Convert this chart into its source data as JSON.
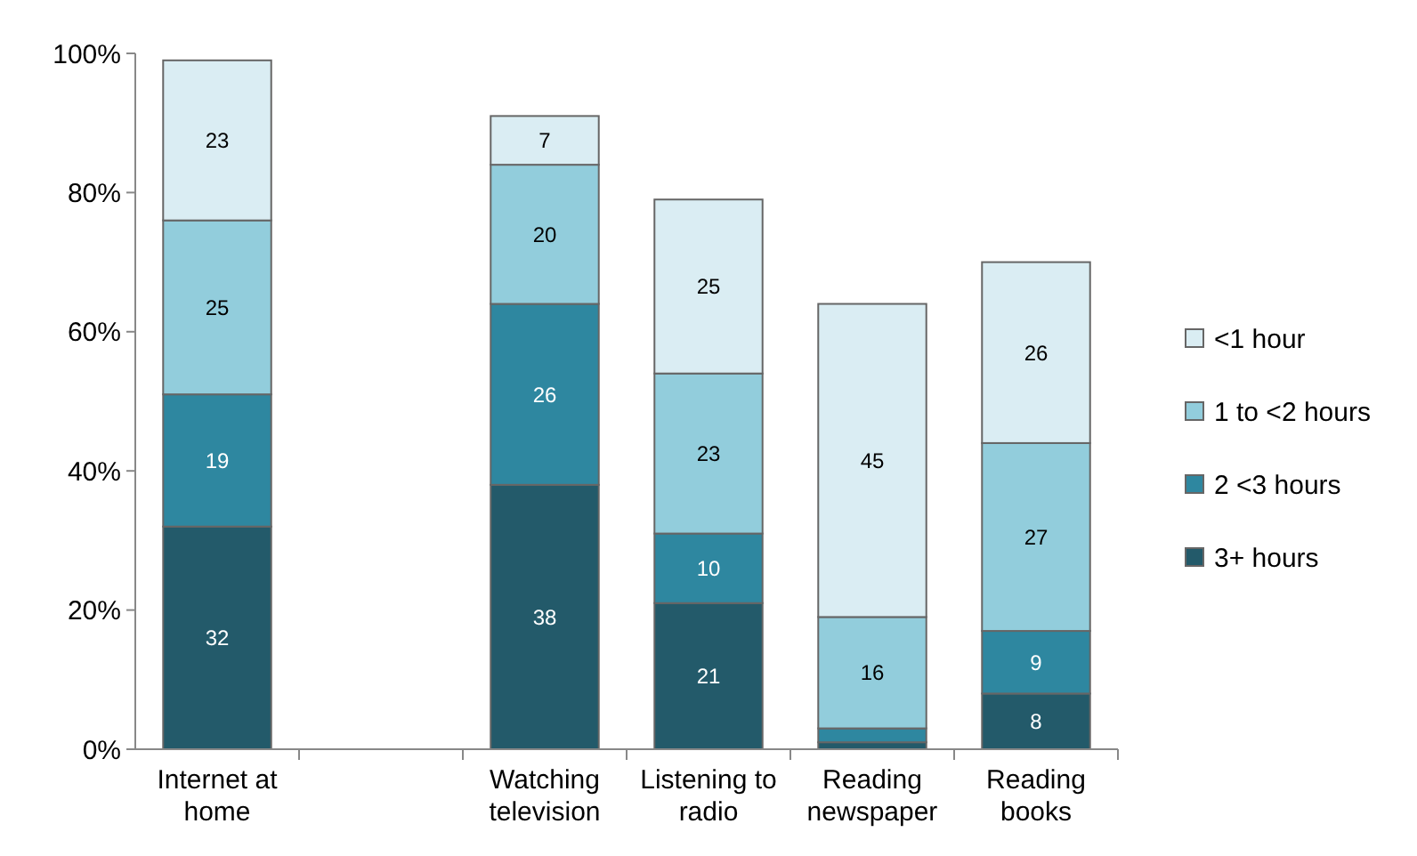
{
  "chart_data": {
    "type": "bar",
    "stacked": true,
    "categories": [
      "Internet at home",
      null,
      "Watching television",
      "Listening to radio",
      "Reading newspaper",
      "Reading books"
    ],
    "series": [
      {
        "name": "3+ hours",
        "color": "#235a6a",
        "values": [
          32,
          null,
          38,
          21,
          1,
          8
        ],
        "value_labels": [
          "32",
          null,
          "38",
          "21",
          null,
          "8"
        ]
      },
      {
        "name": "2 <3 hours",
        "color": "#2e87a0",
        "values": [
          19,
          null,
          26,
          10,
          2,
          9
        ],
        "value_labels": [
          "19",
          null,
          "26",
          "10",
          null,
          "9"
        ]
      },
      {
        "name": "1 to <2 hours",
        "color": "#92cddc",
        "values": [
          25,
          null,
          20,
          23,
          16,
          27
        ],
        "value_labels": [
          "25",
          null,
          "20",
          "23",
          "16",
          "27"
        ]
      },
      {
        "name": "<1 hour",
        "color": "#daedf3",
        "values": [
          23,
          null,
          7,
          25,
          45,
          26
        ],
        "value_labels": [
          "23",
          null,
          "7",
          "25",
          "45",
          "26"
        ]
      }
    ],
    "ylim": [
      0,
      100
    ],
    "yticks": [
      {
        "value": 0,
        "label": "0%"
      },
      {
        "value": 20,
        "label": "20%"
      },
      {
        "value": 40,
        "label": "40%"
      },
      {
        "value": 60,
        "label": "60%"
      },
      {
        "value": 80,
        "label": "80%"
      },
      {
        "value": 100,
        "label": "100%"
      }
    ],
    "grid": false,
    "legend": "right"
  }
}
